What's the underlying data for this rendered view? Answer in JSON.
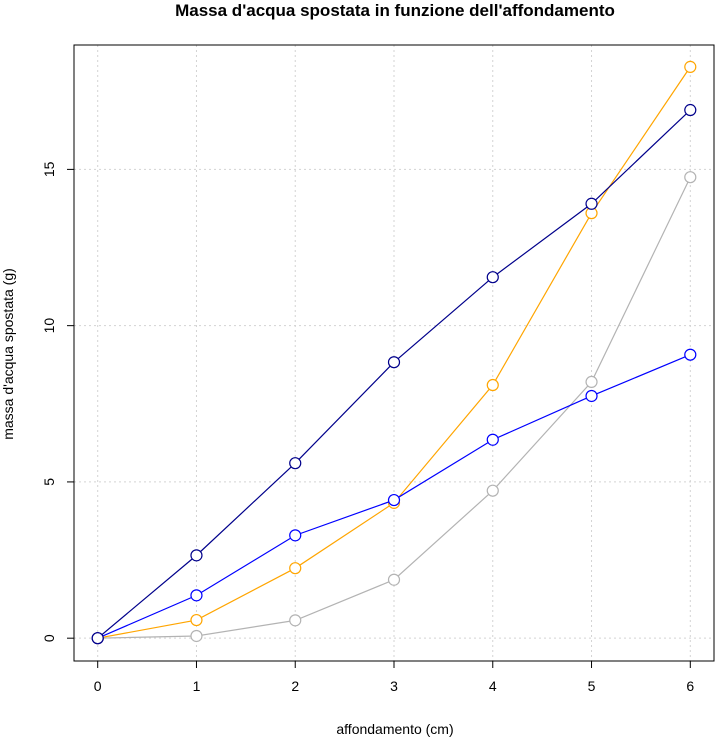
{
  "chart_data": {
    "type": "line",
    "title": "Massa d'acqua spostata in funzione dell'affondamento",
    "xlabel": "affondamento (cm)",
    "ylabel": "massa d'acqua spostata (g)",
    "x": [
      0,
      1,
      2,
      3,
      4,
      5,
      6
    ],
    "x_ticks": [
      "0",
      "1",
      "2",
      "3",
      "4",
      "5",
      "6"
    ],
    "y_ticks": [
      "0",
      "5",
      "10",
      "15"
    ],
    "xlim": [
      -0.24,
      6.24
    ],
    "ylim": [
      -0.73,
      18.98
    ],
    "grid": true,
    "series": [
      {
        "color": "#00008B",
        "values": [
          0,
          2.65,
          5.6,
          8.83,
          11.55,
          13.9,
          16.9
        ]
      },
      {
        "color": "#0000FF",
        "values": [
          0,
          1.37,
          3.29,
          4.42,
          6.35,
          7.75,
          9.07
        ]
      },
      {
        "color": "#FFA500",
        "values": [
          0,
          0.58,
          2.24,
          4.33,
          8.1,
          13.6,
          18.28
        ]
      },
      {
        "color": "#B3B3B3",
        "values": [
          0,
          0.07,
          0.57,
          1.87,
          4.72,
          8.2,
          14.75
        ]
      }
    ]
  }
}
